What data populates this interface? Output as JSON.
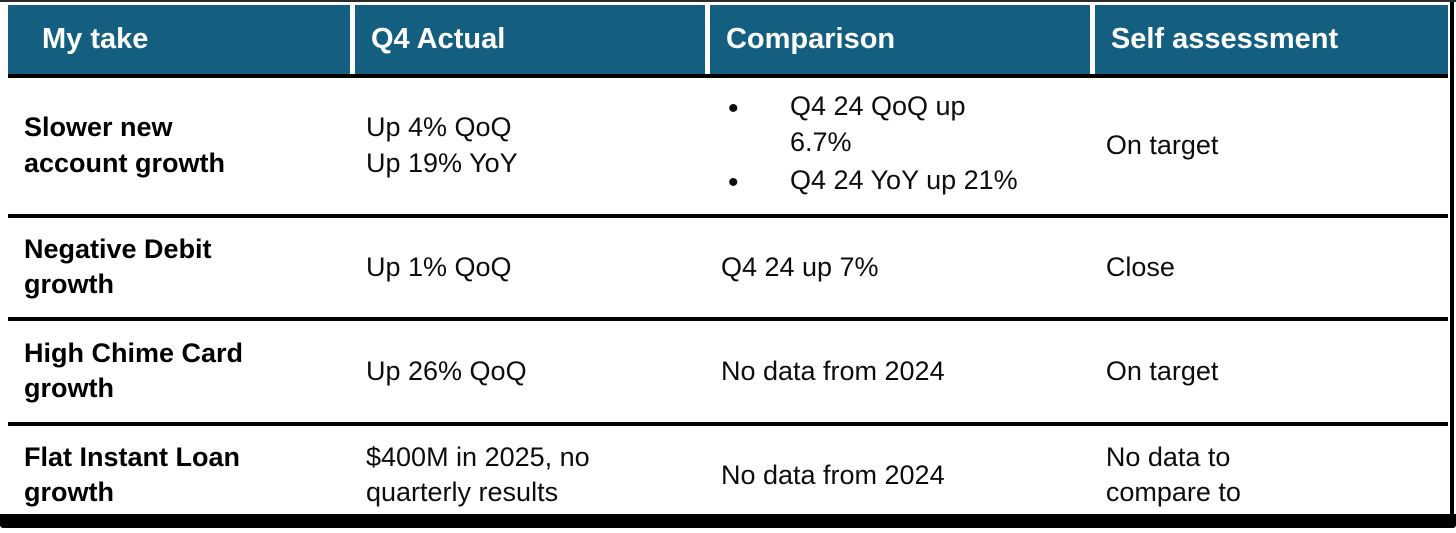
{
  "table": {
    "colors": {
      "header_bg": "#145F80",
      "header_text": "#FFFFFF",
      "body_text": "#0D0D0D",
      "divider": "#000000",
      "shadow": "#000000"
    },
    "columns": [
      {
        "label": "My take"
      },
      {
        "label": "Q4 Actual"
      },
      {
        "label": "Comparison"
      },
      {
        "label": "Self assessment"
      }
    ],
    "rows": [
      {
        "my_take": "Slower new\naccount growth",
        "q4_actual": "Up 4% QoQ\nUp 19% YoY",
        "comparison_bullets": [
          "Q4 24 QoQ up\n6.7%",
          "Q4 24 YoY up 21%"
        ],
        "self_assessment": "On target"
      },
      {
        "my_take": "Negative Debit\ngrowth",
        "q4_actual": "Up 1% QoQ",
        "comparison": "Q4 24 up 7%",
        "self_assessment": "Close"
      },
      {
        "my_take": "High Chime Card\ngrowth",
        "q4_actual": "Up 26% QoQ",
        "comparison": "No data from 2024",
        "self_assessment": "On target"
      },
      {
        "my_take": "Flat Instant Loan\ngrowth",
        "q4_actual": "$400M in 2025, no\nquarterly results",
        "comparison": "No data from 2024",
        "self_assessment": "No data to\ncompare to"
      }
    ]
  }
}
